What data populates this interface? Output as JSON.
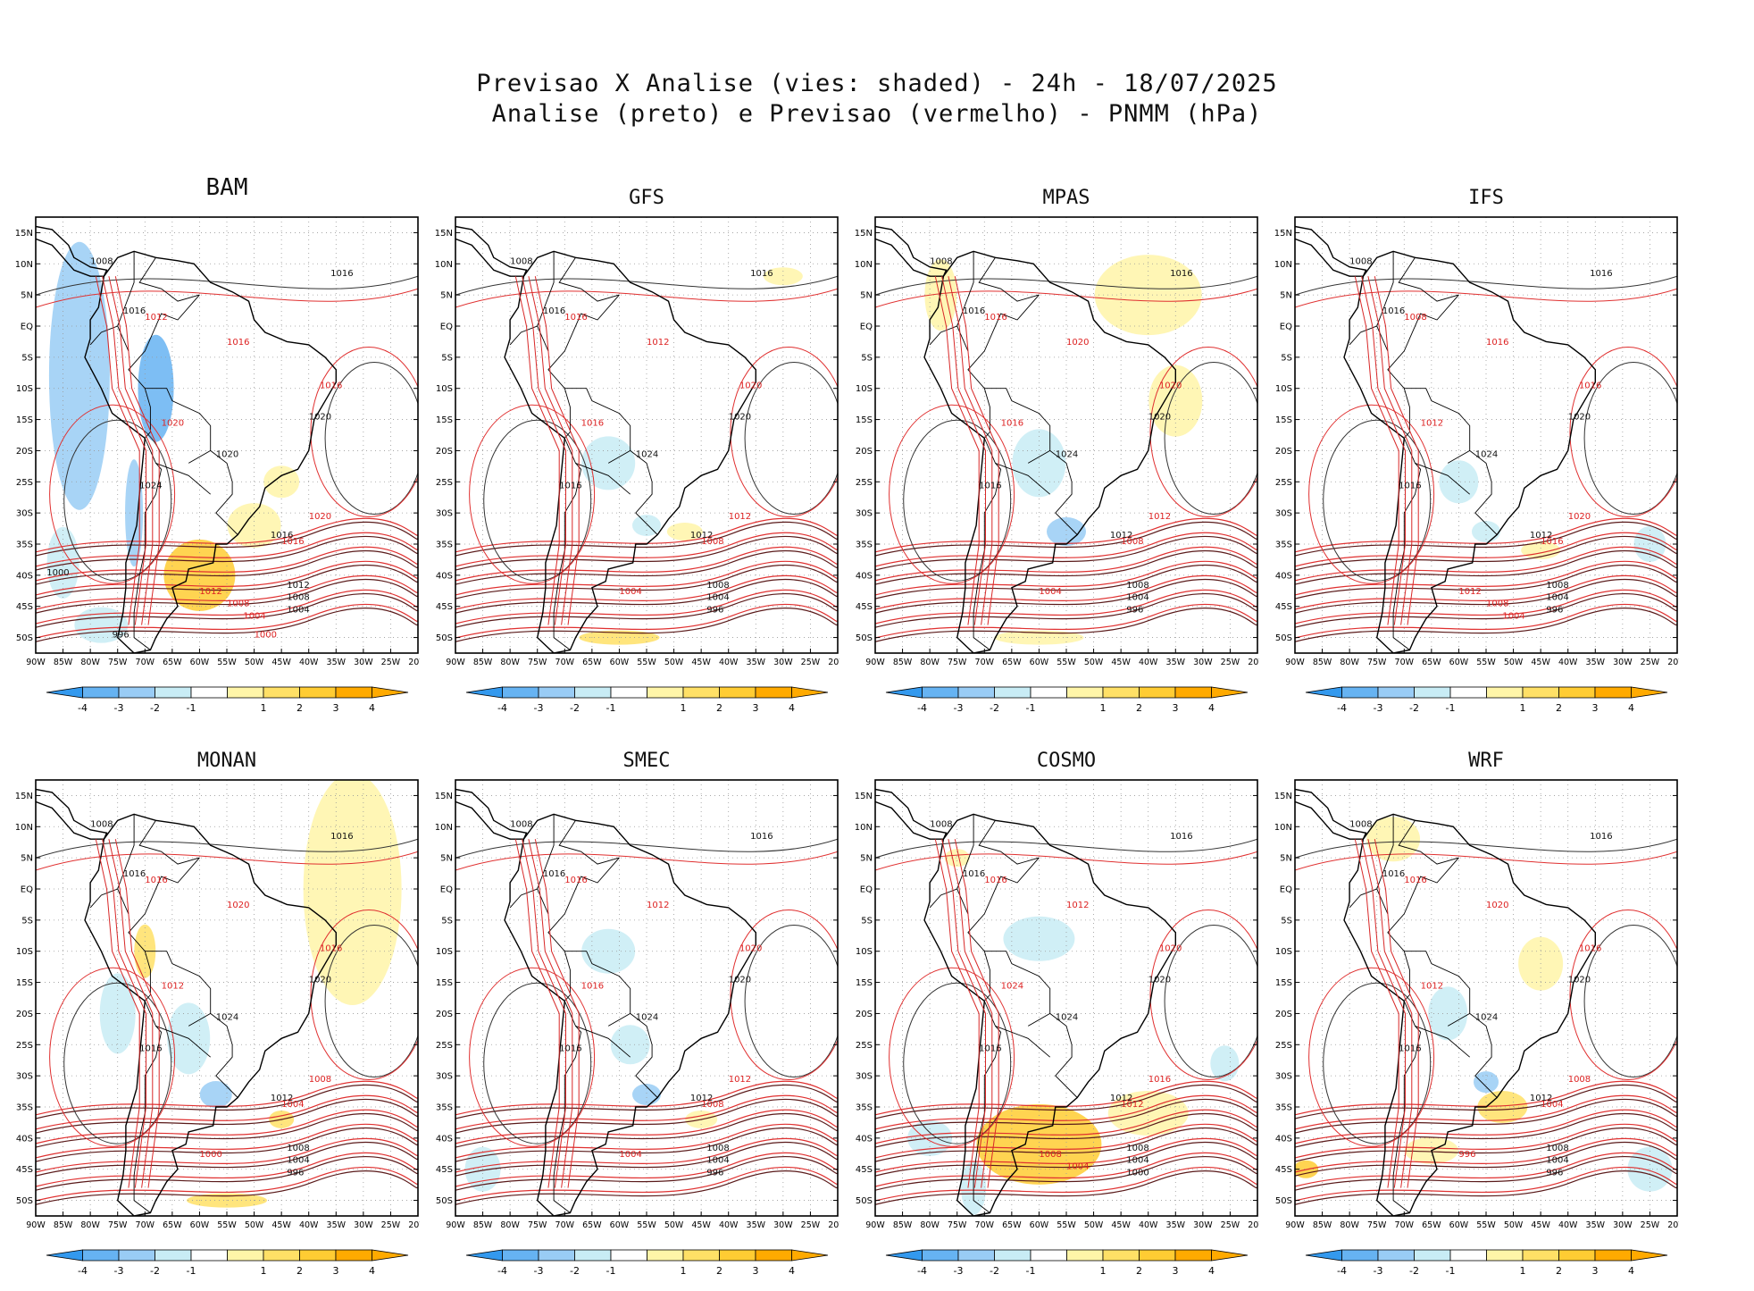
{
  "title": {
    "line1": "Previsao X Analise (vies: shaded) - 24h - 18/07/2025",
    "line2": "Analise (preto) e Previsao (vermelho) - PNMM (hPa)"
  },
  "panels": [
    {
      "model": "BAM",
      "analysis_labels": [
        "1008",
        "1016",
        "1016",
        "1020",
        "1020",
        "1024",
        "1016",
        "1012",
        "1008",
        "1004",
        "1000",
        "996"
      ],
      "forecast_labels": [
        "1012",
        "1016",
        "1016",
        "1020",
        "1020",
        "1016",
        "1012",
        "1008",
        "1004",
        "1000"
      ]
    },
    {
      "model": "GFS",
      "analysis_labels": [
        "1008",
        "1016",
        "1016",
        "1020",
        "1024",
        "1016",
        "1012",
        "1008",
        "1004",
        "996"
      ],
      "forecast_labels": [
        "1016",
        "1012",
        "1020",
        "1016",
        "1012",
        "1008",
        "1004"
      ]
    },
    {
      "model": "MPAS",
      "analysis_labels": [
        "1008",
        "1016",
        "1016",
        "1020",
        "1024",
        "1016",
        "1012",
        "1008",
        "1004",
        "996"
      ],
      "forecast_labels": [
        "1016",
        "1020",
        "1020",
        "1016",
        "1012",
        "1008",
        "1004"
      ]
    },
    {
      "model": "IFS",
      "analysis_labels": [
        "1008",
        "1016",
        "1016",
        "1020",
        "1024",
        "1016",
        "1012",
        "1008",
        "1004",
        "996"
      ],
      "forecast_labels": [
        "1008",
        "1016",
        "1016",
        "1012",
        "1020",
        "1016",
        "1012",
        "1008",
        "1004"
      ]
    },
    {
      "model": "MONAN",
      "analysis_labels": [
        "1008",
        "1016",
        "1016",
        "1020",
        "1024",
        "1016",
        "1012",
        "1008",
        "1004",
        "996"
      ],
      "forecast_labels": [
        "1016",
        "1020",
        "1016",
        "1012",
        "1008",
        "1004",
        "1000"
      ]
    },
    {
      "model": "SMEC",
      "analysis_labels": [
        "1008",
        "1016",
        "1016",
        "1020",
        "1024",
        "1016",
        "1012",
        "1008",
        "1004",
        "996"
      ],
      "forecast_labels": [
        "1016",
        "1012",
        "1020",
        "1016",
        "1012",
        "1008",
        "1004"
      ]
    },
    {
      "model": "COSMO",
      "analysis_labels": [
        "1008",
        "1016",
        "1016",
        "1020",
        "1024",
        "1016",
        "1012",
        "1008",
        "1004",
        "1000"
      ],
      "forecast_labels": [
        "1016",
        "1012",
        "1020",
        "1024",
        "1016",
        "1012",
        "1008",
        "1004"
      ]
    },
    {
      "model": "WRF",
      "analysis_labels": [
        "1008",
        "1016",
        "1016",
        "1020",
        "1024",
        "1016",
        "1012",
        "1008",
        "1004",
        "996"
      ],
      "forecast_labels": [
        "1016",
        "1020",
        "1016",
        "1012",
        "1008",
        "1004",
        "996"
      ]
    }
  ],
  "axes": {
    "lat_ticks": [
      "15N",
      "10N",
      "5N",
      "EQ",
      "5S",
      "10S",
      "15S",
      "20S",
      "25S",
      "30S",
      "35S",
      "40S",
      "45S",
      "50S"
    ],
    "lon_ticks": [
      "90W",
      "85W",
      "80W",
      "75W",
      "70W",
      "65W",
      "60W",
      "55W",
      "50W",
      "45W",
      "40W",
      "35W",
      "30W",
      "25W",
      "20W"
    ]
  },
  "colorbar": {
    "labels": [
      "-4",
      "-3",
      "-2",
      "-1",
      "1",
      "2",
      "3",
      "4"
    ],
    "colors": [
      "#3399ee",
      "#66b3f2",
      "#99ccf5",
      "#c8ecf5",
      "#ffffff",
      "#fff5a8",
      "#ffe066",
      "#ffcc33",
      "#ffaa00"
    ]
  }
}
